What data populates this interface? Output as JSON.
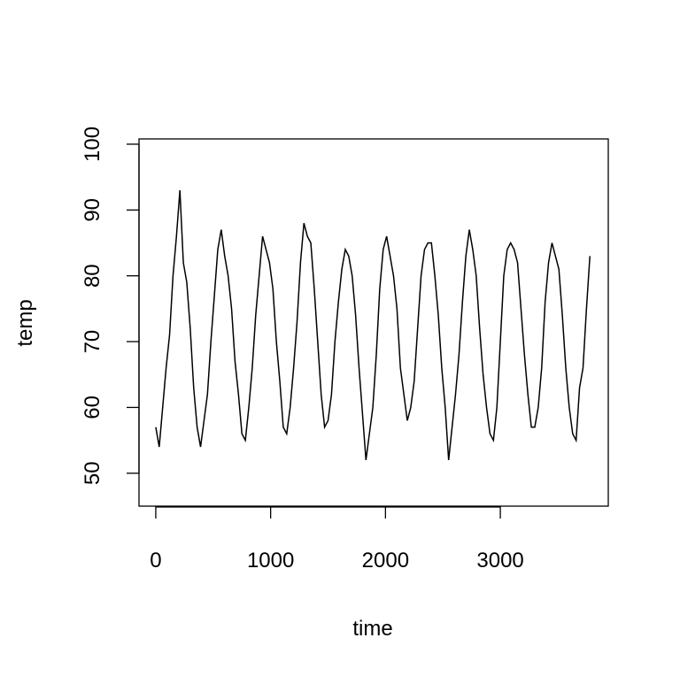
{
  "chart_data": {
    "type": "line",
    "xlabel": "time",
    "ylabel": "temp",
    "x": [
      0,
      30,
      60,
      90,
      120,
      150,
      180,
      210,
      240,
      270,
      300,
      330,
      360,
      390,
      420,
      450,
      480,
      510,
      540,
      570,
      600,
      630,
      660,
      690,
      720,
      750,
      780,
      810,
      840,
      870,
      900,
      930,
      960,
      990,
      1020,
      1050,
      1080,
      1110,
      1140,
      1170,
      1200,
      1230,
      1260,
      1290,
      1320,
      1350,
      1380,
      1410,
      1440,
      1470,
      1500,
      1530,
      1560,
      1590,
      1620,
      1650,
      1680,
      1710,
      1740,
      1770,
      1800,
      1830,
      1860,
      1890,
      1920,
      1950,
      1980,
      2010,
      2040,
      2070,
      2100,
      2130,
      2160,
      2190,
      2220,
      2250,
      2280,
      2310,
      2340,
      2370,
      2400,
      2430,
      2460,
      2490,
      2520,
      2550,
      2580,
      2610,
      2640,
      2670,
      2700,
      2730,
      2760,
      2790,
      2820,
      2850,
      2880,
      2910,
      2940,
      2970,
      3000,
      3030,
      3060,
      3090,
      3120,
      3150,
      3180,
      3210,
      3240,
      3270,
      3300,
      3330,
      3360,
      3390,
      3420,
      3450,
      3480,
      3510,
      3540,
      3570,
      3600,
      3630,
      3660,
      3690,
      3720,
      3750,
      3780
    ],
    "series": [
      {
        "color": "#000000",
        "values": [
          57,
          54,
          60,
          66,
          71,
          80,
          86,
          93,
          82,
          79,
          72,
          63,
          57,
          54,
          58,
          62,
          70,
          77,
          84,
          87,
          83,
          80,
          75,
          67,
          62,
          56,
          55,
          60,
          66,
          74,
          80,
          86,
          84,
          82,
          78,
          70,
          64,
          57,
          56,
          60,
          66,
          73,
          82,
          88,
          86,
          85,
          78,
          70,
          62,
          57,
          58,
          62,
          70,
          76,
          81,
          84,
          83,
          80,
          74,
          66,
          59,
          52,
          56,
          60,
          68,
          78,
          84,
          86,
          83,
          80,
          75,
          66,
          62,
          58,
          60,
          64,
          72,
          80,
          84,
          85,
          85,
          80,
          74,
          66,
          60,
          52,
          57,
          62,
          68,
          76,
          83,
          87,
          84,
          80,
          72,
          65,
          60,
          56,
          55,
          60,
          70,
          80,
          84,
          85,
          84,
          82,
          75,
          68,
          62,
          57,
          57,
          60,
          66,
          76,
          82,
          85,
          83,
          81,
          74,
          66,
          60,
          56,
          55,
          63,
          66,
          75,
          83
        ]
      }
    ],
    "xlim": [
      -146,
      3940
    ],
    "ylim": [
      45,
      100.8
    ],
    "xticks": [
      0,
      1000,
      2000,
      3000
    ],
    "yticks": [
      50,
      60,
      70,
      80,
      90,
      100
    ]
  }
}
